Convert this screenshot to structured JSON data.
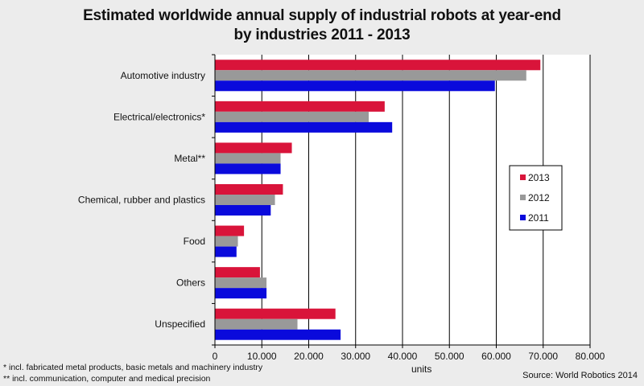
{
  "chart_data": {
    "type": "bar",
    "orientation": "horizontal",
    "title_lines": [
      "Estimated worldwide annual supply of industrial robots at year-end",
      "by industries 2011 - 2013"
    ],
    "categories": [
      "Automotive industry",
      "Electrical/electronics*",
      "Metal**",
      "Chemical, rubber and plastics",
      "Food",
      "Others",
      "Unspecified"
    ],
    "series": [
      {
        "name": "2013",
        "color": "#d9143a",
        "values": [
          69400,
          36200,
          16400,
          14500,
          6200,
          9600,
          25700
        ]
      },
      {
        "name": "2012",
        "color": "#999999",
        "values": [
          66400,
          32800,
          14000,
          12800,
          4900,
          11000,
          17600
        ]
      },
      {
        "name": "2011",
        "color": "#0a0adc",
        "values": [
          59700,
          37800,
          14000,
          11900,
          4600,
          11000,
          26800
        ]
      }
    ],
    "xlabel": "units",
    "xlim": [
      0,
      80000
    ],
    "xticks": [
      0,
      10000,
      20000,
      30000,
      40000,
      50000,
      60000,
      70000,
      80000
    ],
    "xtick_labels": [
      "0",
      "10.000",
      "20.000",
      "30.000",
      "40.000",
      "50.000",
      "60.000",
      "70.000",
      "80.000"
    ],
    "legend_position": "right",
    "grid": true,
    "footnotes": [
      "* incl. fabricated metal products, basic metals and machinery industry",
      "** incl. communication, computer and medical precision"
    ],
    "source": "Source: World Robotics 2014"
  }
}
